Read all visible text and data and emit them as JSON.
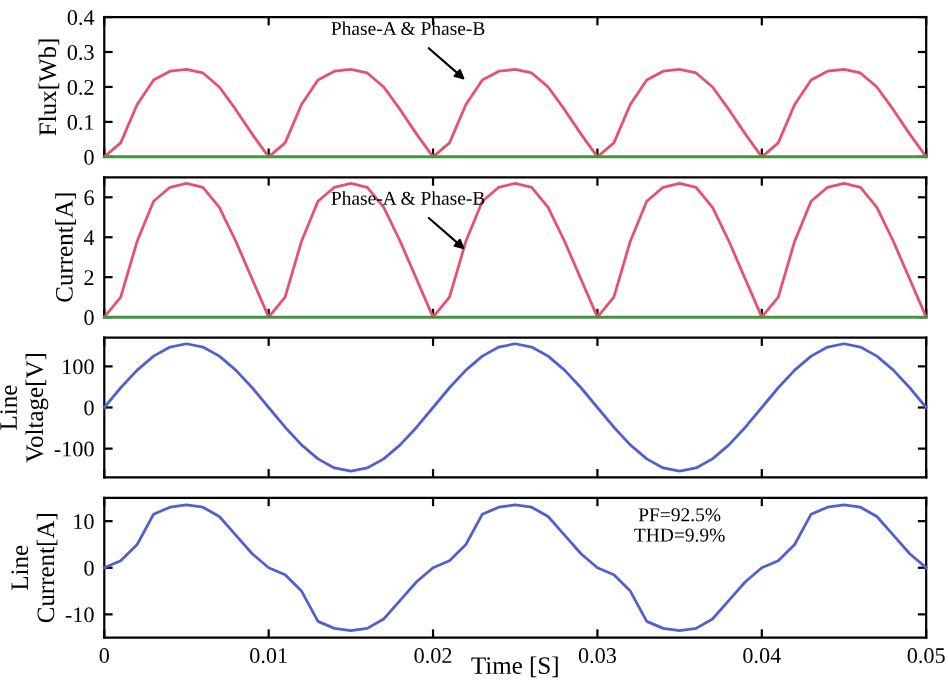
{
  "chart_data": [
    {
      "type": "line",
      "ylabel": "Flux[Wb]",
      "tick_labels": "y",
      "x": [
        0,
        0.001,
        0.002,
        0.003,
        0.004,
        0.005,
        0.006,
        0.007,
        0.008,
        0.009,
        0.01,
        0.011,
        0.012,
        0.013,
        0.014,
        0.015,
        0.016,
        0.017,
        0.018,
        0.019,
        0.02,
        0.021,
        0.022,
        0.023,
        0.024,
        0.025,
        0.026,
        0.027,
        0.028,
        0.029,
        0.03,
        0.031,
        0.032,
        0.033,
        0.034,
        0.035,
        0.036,
        0.037,
        0.038,
        0.039,
        0.04,
        0.041,
        0.042,
        0.043,
        0.044,
        0.045,
        0.046,
        0.047,
        0.048,
        0.049,
        0.05
      ],
      "series": [
        {
          "color": "#e8506e",
          "values": [
            0,
            0.04,
            0.15,
            0.22,
            0.245,
            0.25,
            0.24,
            0.2,
            0.135,
            0.065,
            0,
            0.04,
            0.15,
            0.22,
            0.245,
            0.25,
            0.24,
            0.2,
            0.135,
            0.065,
            0,
            0.04,
            0.15,
            0.22,
            0.245,
            0.25,
            0.24,
            0.2,
            0.135,
            0.065,
            0,
            0.04,
            0.15,
            0.22,
            0.245,
            0.25,
            0.24,
            0.2,
            0.135,
            0.065,
            0,
            0.04,
            0.15,
            0.22,
            0.245,
            0.25,
            0.24,
            0.2,
            0.135,
            0.065,
            0
          ]
        },
        {
          "color": "#3a9a3a",
          "values": [
            0,
            0,
            0,
            0,
            0,
            0,
            0,
            0,
            0,
            0,
            0,
            0,
            0,
            0,
            0,
            0,
            0,
            0,
            0,
            0,
            0,
            0,
            0,
            0,
            0,
            0,
            0,
            0,
            0,
            0,
            0,
            0,
            0,
            0,
            0,
            0,
            0,
            0,
            0,
            0,
            0,
            0,
            0,
            0,
            0,
            0,
            0,
            0,
            0,
            0,
            0
          ]
        }
      ],
      "xlim": [
        0,
        0.05
      ],
      "xticks": [
        0,
        0.01,
        0.02,
        0.03,
        0.04,
        0.05
      ],
      "ylim": [
        0,
        0.4
      ],
      "yticks": [
        0,
        0.1,
        0.2,
        0.3,
        0.4
      ],
      "annotations": [
        {
          "text": "Phase-A & Phase-B",
          "x": 0.0222,
          "y": 0.21
        }
      ]
    },
    {
      "type": "line",
      "ylabel": "Current[A]",
      "tick_labels": "y",
      "x": [
        0,
        0.001,
        0.002,
        0.003,
        0.004,
        0.005,
        0.006,
        0.007,
        0.008,
        0.009,
        0.01,
        0.011,
        0.012,
        0.013,
        0.014,
        0.015,
        0.016,
        0.017,
        0.018,
        0.019,
        0.02,
        0.021,
        0.022,
        0.023,
        0.024,
        0.025,
        0.026,
        0.027,
        0.028,
        0.029,
        0.03,
        0.031,
        0.032,
        0.033,
        0.034,
        0.035,
        0.036,
        0.037,
        0.038,
        0.039,
        0.04,
        0.041,
        0.042,
        0.043,
        0.044,
        0.045,
        0.046,
        0.047,
        0.048,
        0.049,
        0.05
      ],
      "series": [
        {
          "color": "#e8506e",
          "values": [
            0,
            1,
            3.8,
            5.8,
            6.5,
            6.7,
            6.5,
            5.5,
            3.8,
            1.9,
            0,
            1,
            3.8,
            5.8,
            6.5,
            6.7,
            6.5,
            5.5,
            3.8,
            1.9,
            0,
            1,
            3.8,
            5.8,
            6.5,
            6.7,
            6.5,
            5.5,
            3.8,
            1.9,
            0,
            1,
            3.8,
            5.8,
            6.5,
            6.7,
            6.5,
            5.5,
            3.8,
            1.9,
            0,
            1,
            3.8,
            5.8,
            6.5,
            6.7,
            6.5,
            5.5,
            3.8,
            1.9,
            0
          ]
        },
        {
          "color": "#3a9a3a",
          "values": [
            0,
            0,
            0,
            0,
            0,
            0,
            0,
            0,
            0,
            0,
            0,
            0,
            0,
            0,
            0,
            0,
            0,
            0,
            0,
            0,
            0,
            0,
            0,
            0,
            0,
            0,
            0,
            0,
            0,
            0,
            0,
            0,
            0,
            0,
            0,
            0,
            0,
            0,
            0,
            0,
            0,
            0,
            0,
            0,
            0,
            0,
            0,
            0,
            0,
            0,
            0
          ]
        }
      ],
      "xlim": [
        0,
        0.05
      ],
      "xticks": [
        0,
        0.01,
        0.02,
        0.03,
        0.04,
        0.05
      ],
      "ylim": [
        0,
        7
      ],
      "yticks": [
        0,
        2,
        4,
        6
      ],
      "annotations": [
        {
          "text": "Phase-A & Phase-B",
          "x": 0.0222,
          "y": 3.2
        }
      ]
    },
    {
      "type": "line",
      "ylabel": "Line\nVoltage[V]",
      "tick_labels": "y",
      "x": [
        0,
        0.001,
        0.002,
        0.003,
        0.004,
        0.005,
        0.006,
        0.007,
        0.008,
        0.009,
        0.01,
        0.011,
        0.012,
        0.013,
        0.014,
        0.015,
        0.016,
        0.017,
        0.018,
        0.019,
        0.02,
        0.021,
        0.022,
        0.023,
        0.024,
        0.025,
        0.026,
        0.027,
        0.028,
        0.029,
        0.03,
        0.031,
        0.032,
        0.033,
        0.034,
        0.035,
        0.036,
        0.037,
        0.038,
        0.039,
        0.04,
        0.041,
        0.042,
        0.043,
        0.044,
        0.045,
        0.046,
        0.047,
        0.048,
        0.049,
        0.05
      ],
      "series": [
        {
          "color": "#5060d0",
          "values": [
            0,
            48,
            91,
            125,
            147,
            155,
            147,
            125,
            91,
            48,
            0,
            -48,
            -91,
            -125,
            -147,
            -155,
            -147,
            -125,
            -91,
            -48,
            0,
            48,
            91,
            125,
            147,
            155,
            147,
            125,
            91,
            48,
            0,
            -48,
            -91,
            -125,
            -147,
            -155,
            -147,
            -125,
            -91,
            -48,
            0,
            48,
            91,
            125,
            147,
            155,
            147,
            125,
            91,
            48,
            0
          ]
        }
      ],
      "xlim": [
        0,
        0.05
      ],
      "xticks": [
        0,
        0.01,
        0.02,
        0.03,
        0.04,
        0.05
      ],
      "ylim": [
        -170,
        170
      ],
      "yticks": [
        -100,
        0,
        100
      ]
    },
    {
      "type": "line",
      "ylabel": "Line\nCurrent[A]",
      "xlabel": "Time [S]",
      "x": [
        0,
        0.001,
        0.002,
        0.003,
        0.004,
        0.005,
        0.006,
        0.007,
        0.008,
        0.009,
        0.01,
        0.011,
        0.012,
        0.013,
        0.014,
        0.015,
        0.016,
        0.017,
        0.018,
        0.019,
        0.02,
        0.021,
        0.022,
        0.023,
        0.024,
        0.025,
        0.026,
        0.027,
        0.028,
        0.029,
        0.03,
        0.031,
        0.032,
        0.033,
        0.034,
        0.035,
        0.036,
        0.037,
        0.038,
        0.039,
        0.04,
        0.041,
        0.042,
        0.043,
        0.044,
        0.045,
        0.046,
        0.047,
        0.048,
        0.049,
        0.05
      ],
      "series": [
        {
          "color": "#5060d0",
          "values": [
            0,
            1.5,
            5,
            11.5,
            13,
            13.5,
            13,
            11,
            7,
            3,
            0,
            -1.5,
            -5,
            -11.5,
            -13,
            -13.5,
            -13,
            -11,
            -7,
            -3,
            0,
            1.5,
            5,
            11.5,
            13,
            13.5,
            13,
            11,
            7,
            3,
            0,
            -1.5,
            -5,
            -11.5,
            -13,
            -13.5,
            -13,
            -11,
            -7,
            -3,
            0,
            1.5,
            5,
            11.5,
            13,
            13.5,
            13,
            11,
            7,
            3,
            0
          ]
        }
      ],
      "xlim": [
        0,
        0.05
      ],
      "xticks": [
        0,
        0.01,
        0.02,
        0.03,
        0.04,
        0.05
      ],
      "ylim": [
        -15,
        15
      ],
      "yticks": [
        -10,
        0,
        10
      ],
      "annotations": [
        "PF=92.5%\nTHD=9.9%"
      ]
    }
  ]
}
